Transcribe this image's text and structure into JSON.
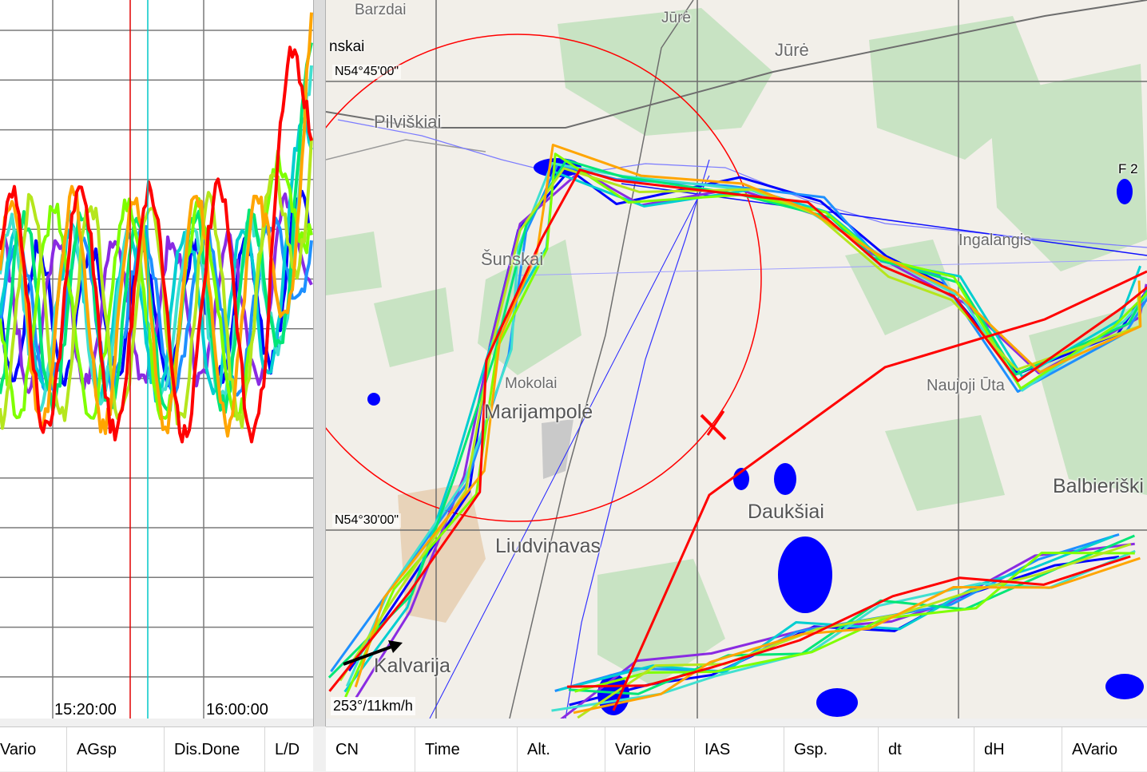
{
  "chart": {
    "time_labels": [
      "15:20:00",
      "16:00:00"
    ]
  },
  "map": {
    "places": {
      "barzdai": "Barzdai",
      "jure1": "Jūrė",
      "jure2": "Jūrė",
      "skai": "nskai",
      "pilviskiai": "Pilviškiai",
      "sunskai": "Šunskai",
      "ingalangis": "Ingalangis",
      "mokolai": "Mokolai",
      "marijampole": "Marijampolė",
      "naujoji_uta": "Naujoji Ūta",
      "balbieriskis": "Balbieriški",
      "dauksiai": "Daukšiai",
      "liudvinavas": "Liudvinavas",
      "kalvarija": "Kalvarija",
      "f2": "F 2"
    },
    "coords": {
      "north_top": "N54°45'00\"",
      "north_bottom": "N54°30'00\""
    },
    "wind": "253°/11km/h"
  },
  "left_header": [
    "Vario",
    "AGsp",
    "Dis.Done",
    "L/D"
  ],
  "right_header": [
    "CN",
    "Time",
    "Alt.",
    "Vario",
    "IAS",
    "Gsp.",
    "dt",
    "dH",
    "AVario"
  ],
  "colors": {
    "series": [
      "#0000ff",
      "#8a2be2",
      "#1e90ff",
      "#00ced1",
      "#40e0d0",
      "#00e676",
      "#7fff00",
      "#b5e61d",
      "#ffa500",
      "#ff0000"
    ],
    "cursor_red": "#e00000",
    "cursor_cyan": "#00c8c8",
    "forest": "#c8e3c3",
    "water": "#0000ff"
  }
}
